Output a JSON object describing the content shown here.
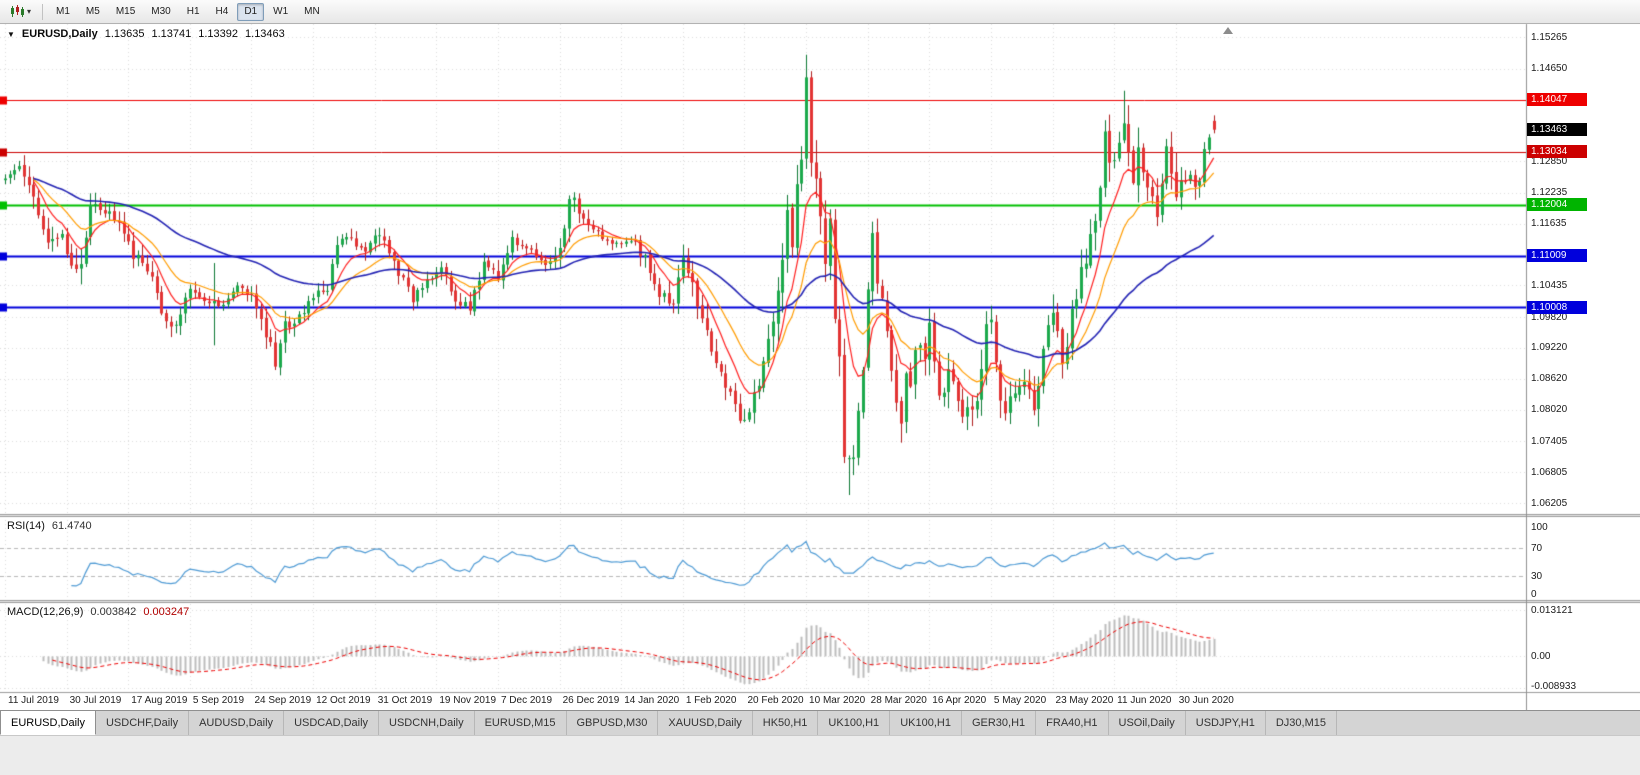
{
  "toolbar": {
    "chart_type_icon": "candlestick-chart-icon",
    "timeframes": [
      {
        "label": "M1",
        "active": false
      },
      {
        "label": "M5",
        "active": false
      },
      {
        "label": "M15",
        "active": false
      },
      {
        "label": "M30",
        "active": false
      },
      {
        "label": "H1",
        "active": false
      },
      {
        "label": "H4",
        "active": false
      },
      {
        "label": "D1",
        "active": true
      },
      {
        "label": "W1",
        "active": false
      },
      {
        "label": "MN",
        "active": false
      }
    ]
  },
  "chart_header": {
    "symbol": "EURUSD,Daily",
    "open": "1.13635",
    "high": "1.13741",
    "low": "1.13392",
    "close": "1.13463"
  },
  "y_axis": {
    "ticks": [
      {
        "label": "1.15265",
        "price": 1.15265
      },
      {
        "label": "1.14650",
        "price": 1.1465
      },
      {
        "label": "1.12850",
        "price": 1.1285
      },
      {
        "label": "1.12235",
        "price": 1.12235
      },
      {
        "label": "1.11635",
        "price": 1.11635
      },
      {
        "label": "1.10435",
        "price": 1.10435
      },
      {
        "label": "1.09820",
        "price": 1.0982
      },
      {
        "label": "1.09220",
        "price": 1.0922
      },
      {
        "label": "1.08620",
        "price": 1.0862
      },
      {
        "label": "1.08020",
        "price": 1.0802
      },
      {
        "label": "1.07405",
        "price": 1.07405
      },
      {
        "label": "1.06805",
        "price": 1.06805
      },
      {
        "label": "1.06205",
        "price": 1.06205
      }
    ],
    "badges": [
      {
        "label": "1.14047",
        "price": 1.14047,
        "color": "#EE0000"
      },
      {
        "label": "1.13463",
        "price": 1.13463,
        "color": "#000000"
      },
      {
        "label": "1.13034",
        "price": 1.13034,
        "color": "#CC0000"
      },
      {
        "label": "1.12004",
        "price": 1.12004,
        "color": "#00B400"
      },
      {
        "label": "1.11009",
        "price": 1.11009,
        "color": "#0000DC"
      },
      {
        "label": "1.10008",
        "price": 1.10008,
        "color": "#0000DC"
      }
    ]
  },
  "rsi_pane": {
    "name": "RSI(14)",
    "value": "61.4740",
    "axis": [
      {
        "label": "100",
        "value": 100
      },
      {
        "label": "70",
        "value": 70
      },
      {
        "label": "30",
        "value": 30
      },
      {
        "label": "0",
        "value": 0
      }
    ]
  },
  "macd_pane": {
    "name": "MACD(12,26,9)",
    "value_main": "0.003842",
    "value_signal": "0.003247",
    "axis": [
      {
        "label": "0.013121",
        "value": 0.013121
      },
      {
        "label": "0.00",
        "value": 0
      },
      {
        "label": "-0.008933",
        "value": -0.008933
      }
    ]
  },
  "tabs": [
    {
      "label": "EURUSD,Daily",
      "active": true
    },
    {
      "label": "USDCHF,Daily",
      "active": false
    },
    {
      "label": "AUDUSD,Daily",
      "active": false
    },
    {
      "label": "USDCAD,Daily",
      "active": false
    },
    {
      "label": "USDCNH,Daily",
      "active": false
    },
    {
      "label": "EURUSD,M15",
      "active": false
    },
    {
      "label": "GBPUSD,M30",
      "active": false
    },
    {
      "label": "XAUUSD,Daily",
      "active": false
    },
    {
      "label": "HK50,H1",
      "active": false
    },
    {
      "label": "UK100,H1",
      "active": false
    },
    {
      "label": "UK100,H1",
      "active": false
    },
    {
      "label": "GER30,H1",
      "active": false
    },
    {
      "label": "FRA40,H1",
      "active": false
    },
    {
      "label": "USOil,Daily",
      "active": false
    },
    {
      "label": "USDJPY,H1",
      "active": false
    },
    {
      "label": "DJ30,M15",
      "active": false
    }
  ],
  "chart_data": {
    "type": "candlestick",
    "symbol": "EURUSD",
    "period": "Daily",
    "current_ohlc": {
      "open": 1.13635,
      "high": 1.13741,
      "low": 1.13392,
      "close": 1.13463
    },
    "days": 256,
    "shift_marker_day": 258,
    "x_labels": [
      {
        "day": 0,
        "label": "11 Jul 2019"
      },
      {
        "day": 13,
        "label": "30 Jul 2019"
      },
      {
        "day": 26,
        "label": "17 Aug 2019"
      },
      {
        "day": 39,
        "label": "5 Sep 2019"
      },
      {
        "day": 52,
        "label": "24 Sep 2019"
      },
      {
        "day": 65,
        "label": "12 Oct 2019"
      },
      {
        "day": 78,
        "label": "31 Oct 2019"
      },
      {
        "day": 91,
        "label": "19 Nov 2019"
      },
      {
        "day": 104,
        "label": "7 Dec 2019"
      },
      {
        "day": 117,
        "label": "26 Dec 2019"
      },
      {
        "day": 130,
        "label": "14 Jan 2020"
      },
      {
        "day": 143,
        "label": "1 Feb 2020"
      },
      {
        "day": 156,
        "label": "20 Feb 2020"
      },
      {
        "day": 169,
        "label": "10 Mar 2020"
      },
      {
        "day": 182,
        "label": "28 Mar 2020"
      },
      {
        "day": 195,
        "label": "16 Apr 2020"
      },
      {
        "day": 208,
        "label": "5 May 2020"
      },
      {
        "day": 221,
        "label": "23 May 2020"
      },
      {
        "day": 234,
        "label": "11 Jun 2020"
      },
      {
        "day": 247,
        "label": "30 Jun 2020"
      }
    ],
    "anchors": [
      [
        0,
        1.1256
      ],
      [
        3,
        1.127
      ],
      [
        6,
        1.1215
      ],
      [
        9,
        1.113
      ],
      [
        12,
        1.115
      ],
      [
        14,
        1.1075
      ],
      [
        16,
        1.1085
      ],
      [
        18,
        1.1205
      ],
      [
        21,
        1.119
      ],
      [
        24,
        1.117
      ],
      [
        27,
        1.11
      ],
      [
        30,
        1.108
      ],
      [
        33,
        1.0995
      ],
      [
        36,
        1.0965
      ],
      [
        39,
        1.1033
      ],
      [
        42,
        1.101
      ],
      [
        44,
        1.101
      ],
      [
        46,
        1.1005
      ],
      [
        49,
        1.104
      ],
      [
        52,
        1.102
      ],
      [
        55,
        1.094
      ],
      [
        57,
        1.0899
      ],
      [
        59,
        1.0965
      ],
      [
        62,
        1.098
      ],
      [
        65,
        1.1025
      ],
      [
        68,
        1.1035
      ],
      [
        70,
        1.1125
      ],
      [
        73,
        1.113
      ],
      [
        76,
        1.1105
      ],
      [
        78,
        1.115
      ],
      [
        80,
        1.1128
      ],
      [
        83,
        1.107
      ],
      [
        86,
        1.102
      ],
      [
        89,
        1.105
      ],
      [
        92,
        1.1075
      ],
      [
        95,
        1.102
      ],
      [
        98,
        1.1
      ],
      [
        101,
        1.108
      ],
      [
        104,
        1.106
      ],
      [
        107,
        1.1135
      ],
      [
        110,
        1.112
      ],
      [
        113,
        1.1087
      ],
      [
        116,
        1.109
      ],
      [
        119,
        1.12
      ],
      [
        120,
        1.1212
      ],
      [
        123,
        1.116
      ],
      [
        126,
        1.114
      ],
      [
        129,
        1.1122
      ],
      [
        132,
        1.1135
      ],
      [
        135,
        1.1095
      ],
      [
        138,
        1.1025
      ],
      [
        141,
        1.101
      ],
      [
        143,
        1.1093
      ],
      [
        145,
        1.1043
      ],
      [
        147,
        1.0982
      ],
      [
        149,
        1.091
      ],
      [
        151,
        1.0873
      ],
      [
        153,
        1.0831
      ],
      [
        155,
        1.0792
      ],
      [
        157,
        1.0785
      ],
      [
        158,
        1.0846
      ],
      [
        160,
        1.088
      ],
      [
        162,
        1.099
      ],
      [
        163,
        1.1026
      ],
      [
        165,
        1.1173
      ],
      [
        166,
        1.1135
      ],
      [
        167,
        1.124
      ],
      [
        168,
        1.1284
      ],
      [
        169,
        1.1448
      ],
      [
        170,
        1.1282
      ],
      [
        171,
        1.1266
      ],
      [
        172,
        1.1184
      ],
      [
        173,
        1.1105
      ],
      [
        174,
        1.118
      ],
      [
        175,
        1.0995
      ],
      [
        176,
        1.0915
      ],
      [
        177,
        1.0692
      ],
      [
        178,
        1.0698
      ],
      [
        179,
        1.0725
      ],
      [
        180,
        1.0787
      ],
      [
        181,
        1.0883
      ],
      [
        182,
        1.103
      ],
      [
        183,
        1.114
      ],
      [
        184,
        1.1047
      ],
      [
        185,
        1.1031
      ],
      [
        186,
        1.0962
      ],
      [
        187,
        1.0859
      ],
      [
        188,
        1.0808
      ],
      [
        189,
        1.0791
      ],
      [
        190,
        1.089
      ],
      [
        191,
        1.0857
      ],
      [
        192,
        1.093
      ],
      [
        194,
        1.0913
      ],
      [
        195,
        1.098
      ],
      [
        197,
        1.084
      ],
      [
        199,
        1.0863
      ],
      [
        201,
        1.0822
      ],
      [
        202,
        1.0777
      ],
      [
        203,
        1.082
      ],
      [
        205,
        1.0818
      ],
      [
        206,
        1.0875
      ],
      [
        207,
        1.0955
      ],
      [
        208,
        1.098
      ],
      [
        209,
        1.0906
      ],
      [
        210,
        1.0837
      ],
      [
        211,
        1.0795
      ],
      [
        213,
        1.0839
      ],
      [
        215,
        1.0849
      ],
      [
        217,
        1.0805
      ],
      [
        219,
        1.0915
      ],
      [
        221,
        1.098
      ],
      [
        223,
        1.09
      ],
      [
        225,
        1.0983
      ],
      [
        227,
        1.1076
      ],
      [
        228,
        1.1101
      ],
      [
        229,
        1.1134
      ],
      [
        230,
        1.117
      ],
      [
        231,
        1.1234
      ],
      [
        232,
        1.1337
      ],
      [
        233,
        1.129
      ],
      [
        234,
        1.1295
      ],
      [
        235,
        1.134
      ],
      [
        236,
        1.1373
      ],
      [
        237,
        1.13
      ],
      [
        238,
        1.1256
      ],
      [
        239,
        1.1324
      ],
      [
        240,
        1.1264
      ],
      [
        241,
        1.1244
      ],
      [
        242,
        1.1205
      ],
      [
        243,
        1.1177
      ],
      [
        244,
        1.126
      ],
      [
        245,
        1.1307
      ],
      [
        246,
        1.1251
      ],
      [
        247,
        1.1218
      ],
      [
        248,
        1.1242
      ],
      [
        249,
        1.1234
      ],
      [
        250,
        1.1251
      ],
      [
        251,
        1.1239
      ],
      [
        252,
        1.1248
      ],
      [
        253,
        1.1308
      ],
      [
        254,
        1.133
      ],
      [
        255,
        1.13463
      ]
    ],
    "specials": {
      "44": {
        "h": 1.1087,
        "l": 1.0927
      },
      "57": {
        "l": 1.0879
      },
      "157": {
        "l": 1.0778
      },
      "169": {
        "o": 1.129,
        "h": 1.1492,
        "l": 1.127,
        "c": 1.1448
      },
      "170": {
        "o": 1.1448,
        "h": 1.146,
        "l": 1.1255,
        "c": 1.1282
      },
      "178": {
        "l": 1.0636
      },
      "236": {
        "h": 1.1422
      },
      "255": {
        "o": 1.13635,
        "h": 1.13741,
        "l": 1.13392,
        "c": 1.13463
      }
    },
    "horizontal_lines": [
      {
        "price": 1.14047,
        "color": "#EE0000",
        "width": 1
      },
      {
        "price": 1.13034,
        "color": "#CC0000",
        "width": 1
      },
      {
        "price": 1.12004,
        "color": "#00C000",
        "width": 2
      },
      {
        "price": 1.11009,
        "color": "#0000DC",
        "width": 2
      },
      {
        "price": 1.10008,
        "color": "#0000DC",
        "width": 2
      }
    ],
    "moving_averages": [
      {
        "period": 8,
        "color": "#FF2020",
        "width": 1.2
      },
      {
        "period": 17,
        "color": "#FF9C00",
        "width": 1.2
      },
      {
        "period": 55,
        "color": "#2424B4",
        "width": 1.6
      }
    ],
    "indicators": {
      "rsi_period": 14,
      "rsi_levels": [
        70,
        30
      ],
      "macd": [
        12,
        26,
        9
      ]
    },
    "colors": {
      "up_fill": "#1CA94C",
      "up_stroke": "#0E7A35",
      "down_fill": "#E23434",
      "down_stroke": "#B01E1E",
      "rsi_line": "#4F9BD5",
      "macd_hist": "#BDBDBD",
      "macd_signal": "#EE0000",
      "grid": "#DCDCDC"
    }
  }
}
